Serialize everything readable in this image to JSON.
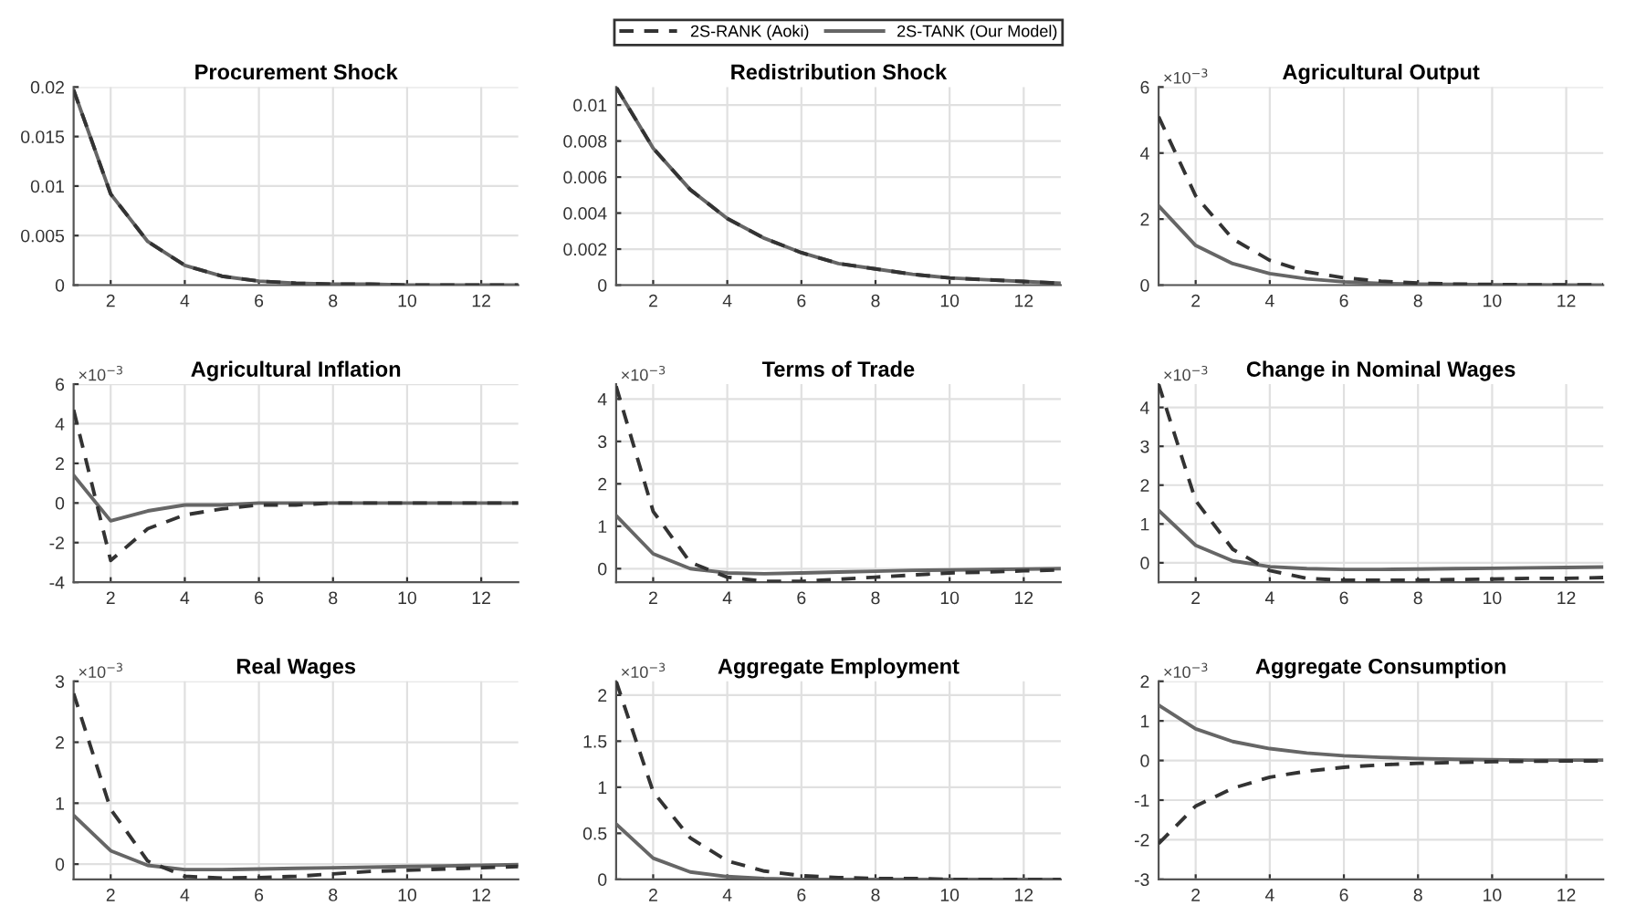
{
  "chart_data": [
    {
      "type": "line",
      "title": "Procurement Shock",
      "x": [
        1,
        2,
        3,
        4,
        5,
        6,
        7,
        8,
        9,
        10,
        11,
        12,
        13
      ],
      "xlim": [
        1,
        13
      ],
      "xticks": [
        2,
        4,
        6,
        8,
        10,
        12
      ],
      "ylim": [
        0,
        0.02
      ],
      "yticks": [
        0,
        0.005,
        0.01,
        0.015,
        0.02
      ],
      "grid": true,
      "series": [
        {
          "color": "#333333",
          "line_style": "dashed",
          "values": [
            0.0197,
            0.0092,
            0.0044,
            0.002,
            0.0009,
            0.0004,
            0.0002,
            0.0001,
            0.0001,
            0,
            0,
            0,
            0
          ]
        },
        {
          "color": "#666666",
          "line_style": "solid",
          "values": [
            0.0197,
            0.0092,
            0.0044,
            0.002,
            0.0009,
            0.0004,
            0.0002,
            0.0001,
            0.0001,
            0,
            0,
            0,
            0
          ]
        }
      ]
    },
    {
      "type": "line",
      "title": "Redistribution Shock",
      "x": [
        1,
        2,
        3,
        4,
        5,
        6,
        7,
        8,
        9,
        10,
        11,
        12,
        13
      ],
      "xlim": [
        1,
        13
      ],
      "xticks": [
        2,
        4,
        6,
        8,
        10,
        12
      ],
      "ylim": [
        0,
        0.011
      ],
      "yticks": [
        0,
        0.002,
        0.004,
        0.006,
        0.008,
        0.01
      ],
      "grid": true,
      "legend": "top",
      "series": [
        {
          "name": "2S-RANK (Aoki)",
          "color": "#333333",
          "line_style": "dashed",
          "values": [
            0.011,
            0.0076,
            0.0053,
            0.0037,
            0.0026,
            0.0018,
            0.0012,
            0.0009,
            0.0006,
            0.0004,
            0.0003,
            0.0002,
            0.0001
          ]
        },
        {
          "name": "2S-TANK (Our Model)",
          "color": "#666666",
          "line_style": "solid",
          "values": [
            0.011,
            0.0076,
            0.0053,
            0.0037,
            0.0026,
            0.0018,
            0.0012,
            0.0009,
            0.0006,
            0.0004,
            0.0003,
            0.0002,
            0.0001
          ]
        }
      ]
    },
    {
      "type": "line",
      "title": "Agricultural Output",
      "annotations": [
        "×10$^{−3}$"
      ],
      "x": [
        1,
        2,
        3,
        4,
        5,
        6,
        7,
        8,
        9,
        10,
        11,
        12,
        13
      ],
      "xlim": [
        1,
        13
      ],
      "xticks": [
        2,
        4,
        6,
        8,
        10,
        12
      ],
      "ylim": [
        0,
        6
      ],
      "yticks": [
        0,
        2,
        4,
        6
      ],
      "grid": true,
      "series": [
        {
          "color": "#333333",
          "line_style": "dashed",
          "values": [
            5.1,
            2.7,
            1.4,
            0.75,
            0.4,
            0.22,
            0.12,
            0.06,
            0.03,
            0.02,
            0.01,
            0.01,
            0.01
          ]
        },
        {
          "color": "#666666",
          "line_style": "solid",
          "values": [
            2.4,
            1.2,
            0.65,
            0.35,
            0.19,
            0.1,
            0.05,
            0.03,
            0.02,
            0.01,
            0.01,
            0,
            0
          ]
        }
      ]
    },
    {
      "type": "line",
      "title": "Agricultural Inflation",
      "annotations": [
        "×10$^{−3}$"
      ],
      "x": [
        1,
        2,
        3,
        4,
        5,
        6,
        7,
        8,
        9,
        10,
        11,
        12,
        13
      ],
      "xlim": [
        1,
        13
      ],
      "xticks": [
        2,
        4,
        6,
        8,
        10,
        12
      ],
      "ylim": [
        -4,
        6
      ],
      "yticks": [
        -4,
        -2,
        0,
        2,
        4,
        6
      ],
      "grid": true,
      "series": [
        {
          "color": "#333333",
          "line_style": "dashed",
          "values": [
            4.7,
            -2.9,
            -1.3,
            -0.6,
            -0.3,
            -0.1,
            -0.1,
            0,
            0,
            0,
            0,
            0,
            0
          ]
        },
        {
          "color": "#666666",
          "line_style": "solid",
          "values": [
            1.4,
            -0.9,
            -0.4,
            -0.1,
            -0.1,
            0,
            0,
            0,
            0,
            0,
            0,
            0,
            0
          ]
        }
      ]
    },
    {
      "type": "line",
      "title": "Terms of Trade",
      "annotations": [
        "×10$^{−3}$"
      ],
      "x": [
        1,
        2,
        3,
        4,
        5,
        6,
        7,
        8,
        9,
        10,
        11,
        12,
        13
      ],
      "xlim": [
        1,
        13
      ],
      "xticks": [
        2,
        4,
        6,
        8,
        10,
        12
      ],
      "ylim": [
        -0.32,
        4.35
      ],
      "yticks": [
        0,
        1,
        2,
        3,
        4
      ],
      "grid": true,
      "series": [
        {
          "color": "#333333",
          "line_style": "dashed",
          "values": [
            4.3,
            1.35,
            0.15,
            -0.2,
            -0.3,
            -0.3,
            -0.25,
            -0.2,
            -0.15,
            -0.1,
            -0.08,
            -0.05,
            -0.03
          ]
        },
        {
          "color": "#666666",
          "line_style": "solid",
          "values": [
            1.25,
            0.35,
            0,
            -0.1,
            -0.12,
            -0.1,
            -0.08,
            -0.06,
            -0.04,
            -0.03,
            -0.02,
            -0.01,
            0
          ]
        }
      ]
    },
    {
      "type": "line",
      "title": "Change in Nominal Wages",
      "annotations": [
        "×10$^{−3}$"
      ],
      "x": [
        1,
        2,
        3,
        4,
        5,
        6,
        7,
        8,
        9,
        10,
        11,
        12,
        13
      ],
      "xlim": [
        1,
        13
      ],
      "xticks": [
        2,
        4,
        6,
        8,
        10,
        12
      ],
      "ylim": [
        -0.5,
        4.6
      ],
      "yticks": [
        0,
        1,
        2,
        3,
        4
      ],
      "grid": true,
      "series": [
        {
          "color": "#333333",
          "line_style": "dashed",
          "values": [
            4.6,
            1.6,
            0.35,
            -0.2,
            -0.4,
            -0.45,
            -0.45,
            -0.45,
            -0.43,
            -0.42,
            -0.4,
            -0.4,
            -0.38
          ]
        },
        {
          "color": "#666666",
          "line_style": "solid",
          "values": [
            1.35,
            0.45,
            0.05,
            -0.1,
            -0.15,
            -0.17,
            -0.17,
            -0.16,
            -0.15,
            -0.14,
            -0.13,
            -0.12,
            -0.11
          ]
        }
      ]
    },
    {
      "type": "line",
      "title": "Real Wages",
      "annotations": [
        "×10$^{−3}$"
      ],
      "x": [
        1,
        2,
        3,
        4,
        5,
        6,
        7,
        8,
        9,
        10,
        11,
        12,
        13
      ],
      "xlim": [
        1,
        13
      ],
      "xticks": [
        2,
        4,
        6,
        8,
        10,
        12
      ],
      "ylim": [
        -0.25,
        3
      ],
      "yticks": [
        0,
        1,
        2,
        3
      ],
      "grid": true,
      "series": [
        {
          "color": "#333333",
          "line_style": "dashed",
          "values": [
            2.8,
            0.9,
            0.05,
            -0.2,
            -0.23,
            -0.22,
            -0.2,
            -0.16,
            -0.12,
            -0.1,
            -0.08,
            -0.06,
            -0.04
          ]
        },
        {
          "color": "#666666",
          "line_style": "solid",
          "values": [
            0.8,
            0.22,
            -0.02,
            -0.09,
            -0.09,
            -0.08,
            -0.07,
            -0.06,
            -0.05,
            -0.04,
            -0.03,
            -0.02,
            -0.01
          ]
        }
      ]
    },
    {
      "type": "line",
      "title": "Aggregate Employment",
      "annotations": [
        "×10$^{−3}$"
      ],
      "x": [
        1,
        2,
        3,
        4,
        5,
        6,
        7,
        8,
        9,
        10,
        11,
        12,
        13
      ],
      "xlim": [
        1,
        13
      ],
      "xticks": [
        2,
        4,
        6,
        8,
        10,
        12
      ],
      "ylim": [
        0,
        2.15
      ],
      "yticks": [
        0,
        0.5,
        1,
        1.5,
        2
      ],
      "grid": true,
      "series": [
        {
          "color": "#333333",
          "line_style": "dashed",
          "values": [
            2.15,
            0.95,
            0.45,
            0.2,
            0.09,
            0.04,
            0.02,
            0.01,
            0.01,
            0,
            0,
            0,
            0
          ]
        },
        {
          "color": "#666666",
          "line_style": "solid",
          "values": [
            0.6,
            0.23,
            0.08,
            0.03,
            0.01,
            0,
            0,
            0,
            0,
            0,
            0,
            0,
            0
          ]
        }
      ]
    },
    {
      "type": "line",
      "title": "Aggregate Consumption",
      "annotations": [
        "×10$^{−3}$"
      ],
      "x": [
        1,
        2,
        3,
        4,
        5,
        6,
        7,
        8,
        9,
        10,
        11,
        12,
        13
      ],
      "xlim": [
        1,
        13
      ],
      "xticks": [
        2,
        4,
        6,
        8,
        10,
        12
      ],
      "ylim": [
        -3,
        2
      ],
      "yticks": [
        -3,
        -2,
        -1,
        0,
        1,
        2
      ],
      "grid": true,
      "series": [
        {
          "color": "#333333",
          "line_style": "dashed",
          "values": [
            -2.1,
            -1.15,
            -0.7,
            -0.42,
            -0.27,
            -0.17,
            -0.11,
            -0.07,
            -0.05,
            -0.03,
            -0.02,
            -0.01,
            -0.01
          ]
        },
        {
          "color": "#666666",
          "line_style": "solid",
          "values": [
            1.4,
            0.8,
            0.48,
            0.3,
            0.19,
            0.12,
            0.08,
            0.05,
            0.03,
            0.02,
            0.01,
            0.01,
            0.01
          ]
        }
      ]
    }
  ]
}
